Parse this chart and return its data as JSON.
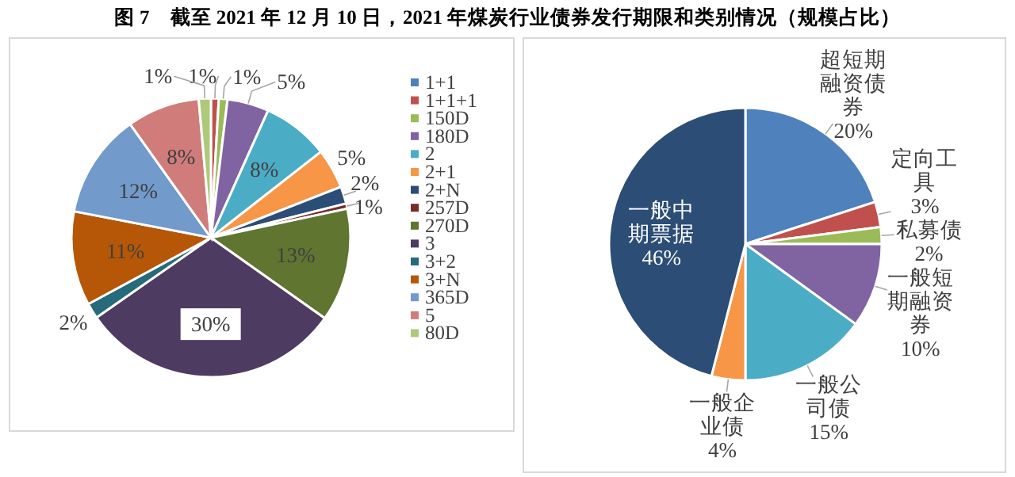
{
  "chart_data": [
    {
      "type": "pie",
      "title": "图 7　截至 2021 年 12 月 10 日，2021 年煤炭行业债券发行期限和类别情况（规模占比）",
      "legend": "right",
      "categories": [
        "1+1",
        "1+1+1",
        "150D",
        "180D",
        "2",
        "2+1",
        "2+N",
        "257D",
        "270D",
        "3",
        "3+2",
        "3+N",
        "365D",
        "5",
        "80D"
      ],
      "values": [
        null,
        0.9,
        1.0,
        4.8,
        7.7,
        4.6,
        2.0,
        0.6,
        13.1,
        30.4,
        1.8,
        10.9,
        12.1,
        8.4,
        1.4
      ],
      "value_labels": [
        null,
        "1%",
        "1%",
        "5%",
        "8%",
        "5%",
        "2%",
        "1%",
        "13%",
        "30%",
        "2%",
        "11%",
        "12%",
        "8%",
        "1%"
      ],
      "colors": [
        "#4f81bd",
        "#c0504d",
        "#9bbb59",
        "#8064a2",
        "#4bacc6",
        "#f79646",
        "#2c4d75",
        "#772c2a",
        "#5f7530",
        "#4d3b62",
        "#276a7c",
        "#b65708",
        "#729aca",
        "#d07c7a",
        "#afc97a"
      ]
    },
    {
      "type": "pie",
      "value_labels": [
        "20%",
        "3%",
        "2%",
        "10%",
        "15%",
        "4%",
        "46%"
      ],
      "categories": [
        "超短期融资债券",
        "定向工具",
        "私募债",
        "一般短期融资券",
        "一般公司债",
        "一般企业债",
        "一般中期票据"
      ],
      "values": [
        20,
        3,
        2,
        10,
        15,
        4,
        46
      ],
      "colors": [
        "#4f81bd",
        "#c0504d",
        "#9bbb59",
        "#8064a2",
        "#4bacc6",
        "#f79646",
        "#2c4d75"
      ]
    }
  ]
}
